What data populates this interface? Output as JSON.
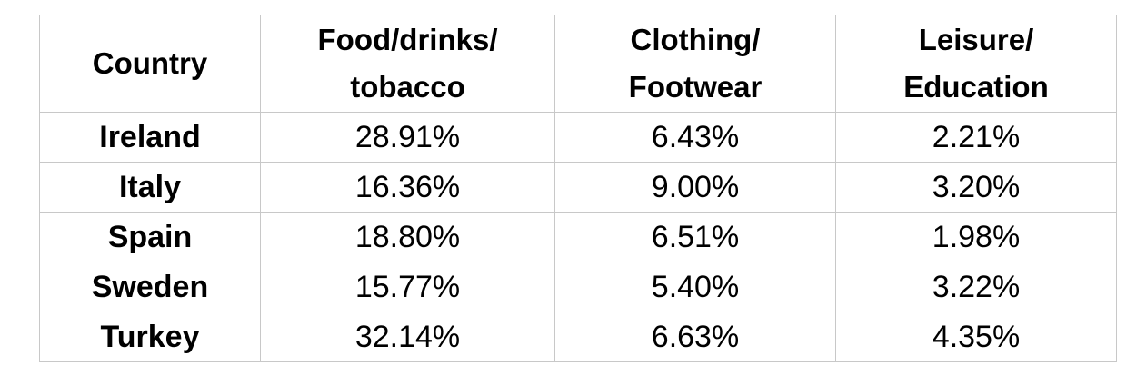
{
  "chart_data": {
    "type": "table",
    "columns": [
      {
        "lines": [
          "Country"
        ]
      },
      {
        "lines": [
          "Food/drinks/",
          "tobacco"
        ]
      },
      {
        "lines": [
          "Clothing/",
          "Footwear"
        ]
      },
      {
        "lines": [
          "Leisure/",
          "Education"
        ]
      }
    ],
    "rows": [
      {
        "country": "Ireland",
        "values": [
          "28.91%",
          "6.43%",
          "2.21%"
        ]
      },
      {
        "country": "Italy",
        "values": [
          "16.36%",
          "9.00%",
          "3.20%"
        ]
      },
      {
        "country": "Spain",
        "values": [
          "18.80%",
          "6.51%",
          "1.98%"
        ]
      },
      {
        "country": "Sweden",
        "values": [
          "15.77%",
          "5.40%",
          "3.22%"
        ]
      },
      {
        "country": "Turkey",
        "values": [
          "32.14%",
          "6.63%",
          "4.35%"
        ]
      }
    ]
  }
}
